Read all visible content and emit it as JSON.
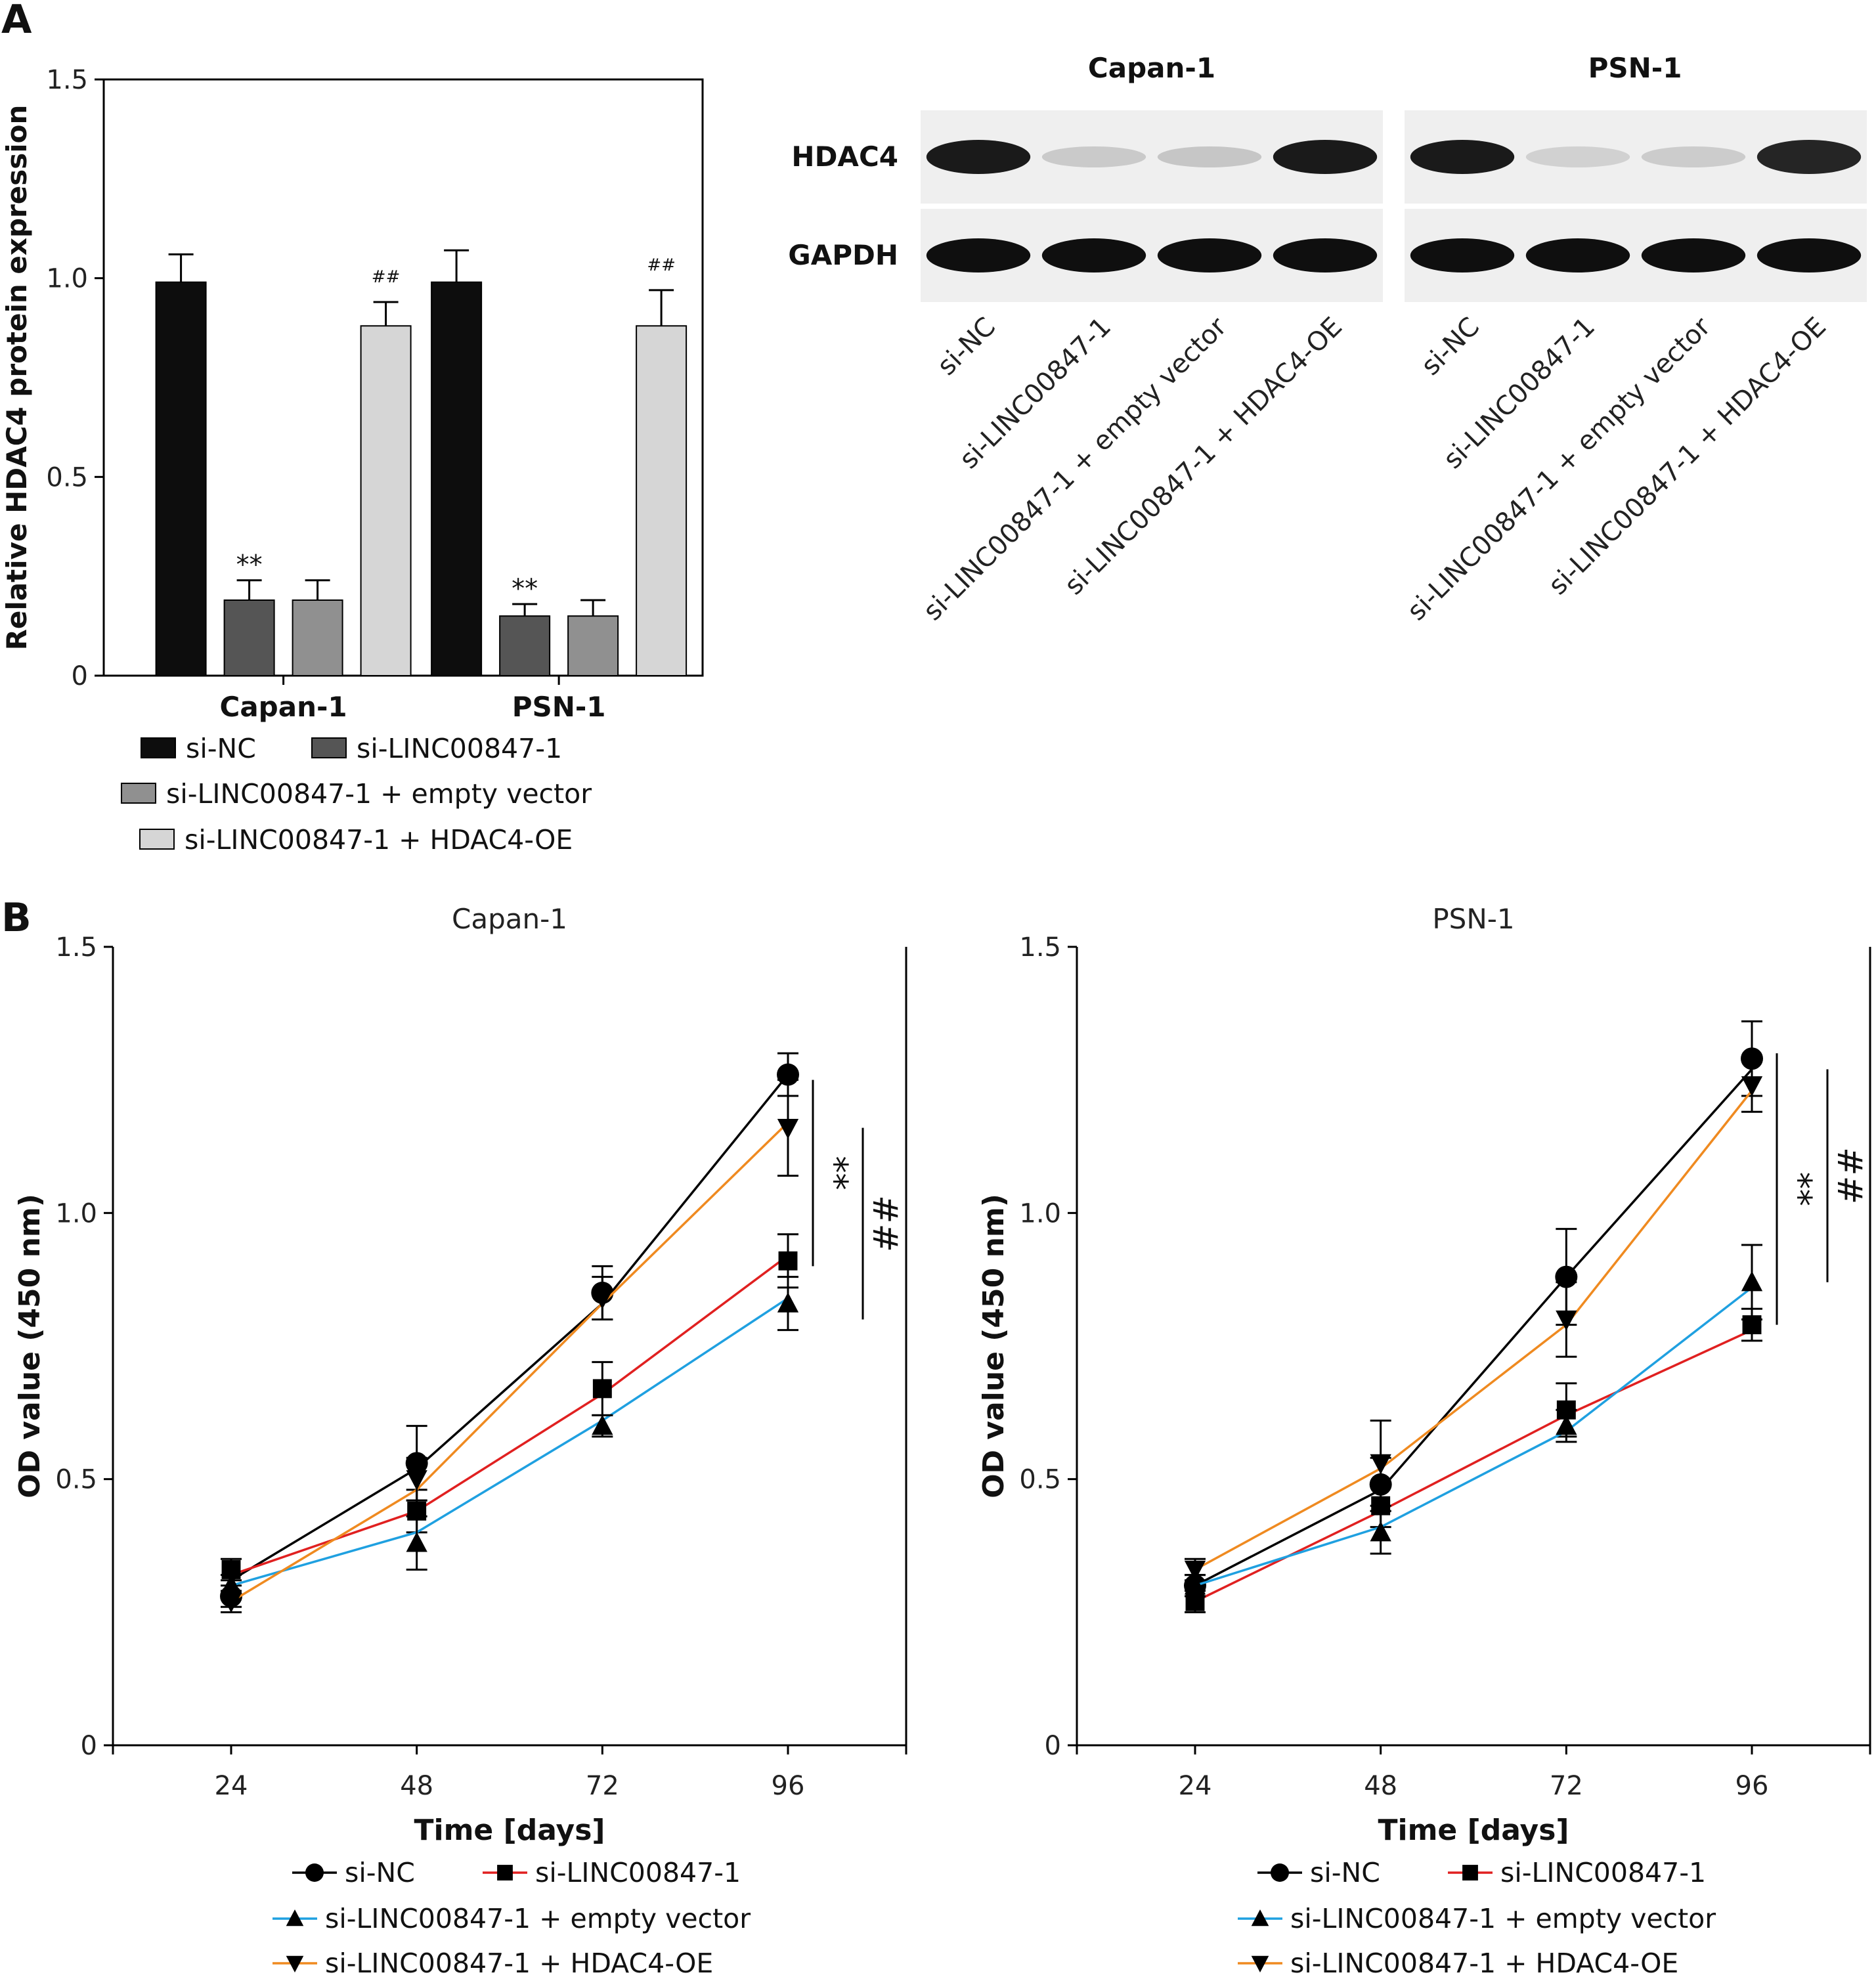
{
  "panel_labels": [
    "A",
    "B"
  ],
  "groups": [
    "si-NC",
    "si-LINC00847-1",
    "si-LINC00847-1 + empty vector",
    "si-LINC00847-1 + HDAC4-OE"
  ],
  "colors": {
    "bar_fills": [
      "#0d0d0d",
      "#555555",
      "#909090",
      "#d6d6d6"
    ],
    "line_colors": [
      "#000000",
      "#e02020",
      "#1fa0e0",
      "#ef8a20"
    ]
  },
  "western_blot": {
    "cell_lines": [
      "Capan-1",
      "PSN-1"
    ],
    "proteins": [
      "HDAC4",
      "GAPDH"
    ],
    "lanes": [
      "si-NC",
      "si-LINC00847-1",
      "si-LINC00847-1 + empty vector",
      "si-LINC00847-1 + HDAC4-OE"
    ],
    "band_intensity": {
      "HDAC4": [
        [
          0.95,
          0.15,
          0.17,
          0.95
        ],
        [
          0.95,
          0.12,
          0.14,
          0.9
        ]
      ],
      "GAPDH": [
        [
          1,
          1,
          1,
          1
        ],
        [
          1,
          1,
          1,
          1
        ]
      ]
    }
  },
  "chart_data": [
    {
      "type": "bar",
      "panel": "A",
      "title": "",
      "xlabel": "",
      "ylabel": "Relative HDAC4 protein expression",
      "categories": [
        "Capan-1",
        "PSN-1"
      ],
      "ylim": [
        0,
        1.5
      ],
      "yticks": [
        "0",
        "0.5",
        "1.0",
        "1.5"
      ],
      "series": [
        {
          "name": "si-NC",
          "values": [
            0.99,
            0.99
          ],
          "errors": [
            0.07,
            0.08
          ],
          "annotations": [
            "",
            ""
          ]
        },
        {
          "name": "si-LINC00847-1",
          "values": [
            0.19,
            0.15
          ],
          "errors": [
            0.05,
            0.03
          ],
          "annotations": [
            "**",
            "**"
          ]
        },
        {
          "name": "si-LINC00847-1 + empty vector",
          "values": [
            0.19,
            0.15
          ],
          "errors": [
            0.05,
            0.04
          ],
          "annotations": [
            "",
            ""
          ]
        },
        {
          "name": "si-LINC00847-1 + HDAC4-OE",
          "values": [
            0.88,
            0.88
          ],
          "errors": [
            0.06,
            0.09
          ],
          "annotations": [
            "##",
            "##"
          ]
        }
      ],
      "grid": false,
      "legend": "bottom"
    },
    {
      "type": "line",
      "panel": "B",
      "title": "Capan-1",
      "xlabel": "Time [days]",
      "ylabel": "OD value (450 nm)",
      "x": [
        24,
        48,
        72,
        96
      ],
      "xticks": [
        "24",
        "48",
        "72",
        "96"
      ],
      "ylim": [
        0,
        1.5
      ],
      "yticks": [
        "0",
        "0.5",
        "1.0",
        "1.5"
      ],
      "markers": [
        "●",
        "■",
        "▲",
        "▼"
      ],
      "series": [
        {
          "name": "si-NC",
          "values": [
            0.31,
            0.52,
            0.83,
            1.26
          ],
          "points": [
            0.28,
            0.53,
            0.85,
            1.26
          ],
          "errors": [
            0.02,
            0.07,
            0.05,
            0.04
          ]
        },
        {
          "name": "si-LINC00847-1",
          "values": [
            0.32,
            0.44,
            0.66,
            0.92
          ],
          "points": [
            0.33,
            0.44,
            0.67,
            0.91
          ],
          "errors": [
            0.02,
            0.04,
            0.05,
            0.05
          ]
        },
        {
          "name": "si-LINC00847-1 + empty vector",
          "values": [
            0.3,
            0.4,
            0.61,
            0.84
          ],
          "points": [
            0.3,
            0.38,
            0.6,
            0.83
          ],
          "errors": [
            0.02,
            0.05,
            0.02,
            0.05
          ]
        },
        {
          "name": "si-LINC00847-1 + HDAC4-OE",
          "values": [
            0.27,
            0.48,
            0.83,
            1.17
          ],
          "points": [
            0.27,
            0.5,
            0.84,
            1.16
          ],
          "errors": [
            0.02,
            0.04,
            0.04,
            0.09
          ]
        }
      ],
      "significance": [
        {
          "label": "**",
          "y_range": [
            0.9,
            1.25
          ]
        },
        {
          "label": "##",
          "y_range": [
            0.8,
            1.16
          ]
        }
      ],
      "grid": false,
      "legend": "bottom"
    },
    {
      "type": "line",
      "panel": "B",
      "title": "PSN-1",
      "xlabel": "Time [days]",
      "ylabel": "OD value (450 nm)",
      "x": [
        24,
        48,
        72,
        96
      ],
      "xticks": [
        "24",
        "48",
        "72",
        "96"
      ],
      "ylim": [
        0,
        1.5
      ],
      "yticks": [
        "0",
        "0.5",
        "1.0",
        "1.5"
      ],
      "markers": [
        "●",
        "■",
        "▲",
        "▼"
      ],
      "series": [
        {
          "name": "si-NC",
          "values": [
            0.3,
            0.48,
            0.88,
            1.27
          ],
          "points": [
            0.3,
            0.49,
            0.88,
            1.29
          ],
          "errors": [
            0.02,
            0.05,
            0.09,
            0.07
          ]
        },
        {
          "name": "si-LINC00847-1",
          "values": [
            0.27,
            0.44,
            0.62,
            0.78
          ],
          "points": [
            0.27,
            0.45,
            0.63,
            0.79
          ],
          "errors": [
            0.02,
            0.04,
            0.05,
            0.03
          ]
        },
        {
          "name": "si-LINC00847-1 + empty vector",
          "values": [
            0.3,
            0.41,
            0.59,
            0.86
          ],
          "points": [
            0.3,
            0.4,
            0.6,
            0.87
          ],
          "errors": [
            0.02,
            0.04,
            0.03,
            0.07
          ]
        },
        {
          "name": "si-LINC00847-1 + HDAC4-OE",
          "values": [
            0.33,
            0.52,
            0.79,
            1.23
          ],
          "points": [
            0.33,
            0.53,
            0.8,
            1.24
          ],
          "errors": [
            0.02,
            0.08,
            0.07,
            0.05
          ]
        }
      ],
      "significance": [
        {
          "label": "**",
          "y_range": [
            0.79,
            1.3
          ]
        },
        {
          "label": "##",
          "y_range": [
            0.87,
            1.27
          ]
        }
      ],
      "grid": false,
      "legend": "bottom"
    }
  ]
}
